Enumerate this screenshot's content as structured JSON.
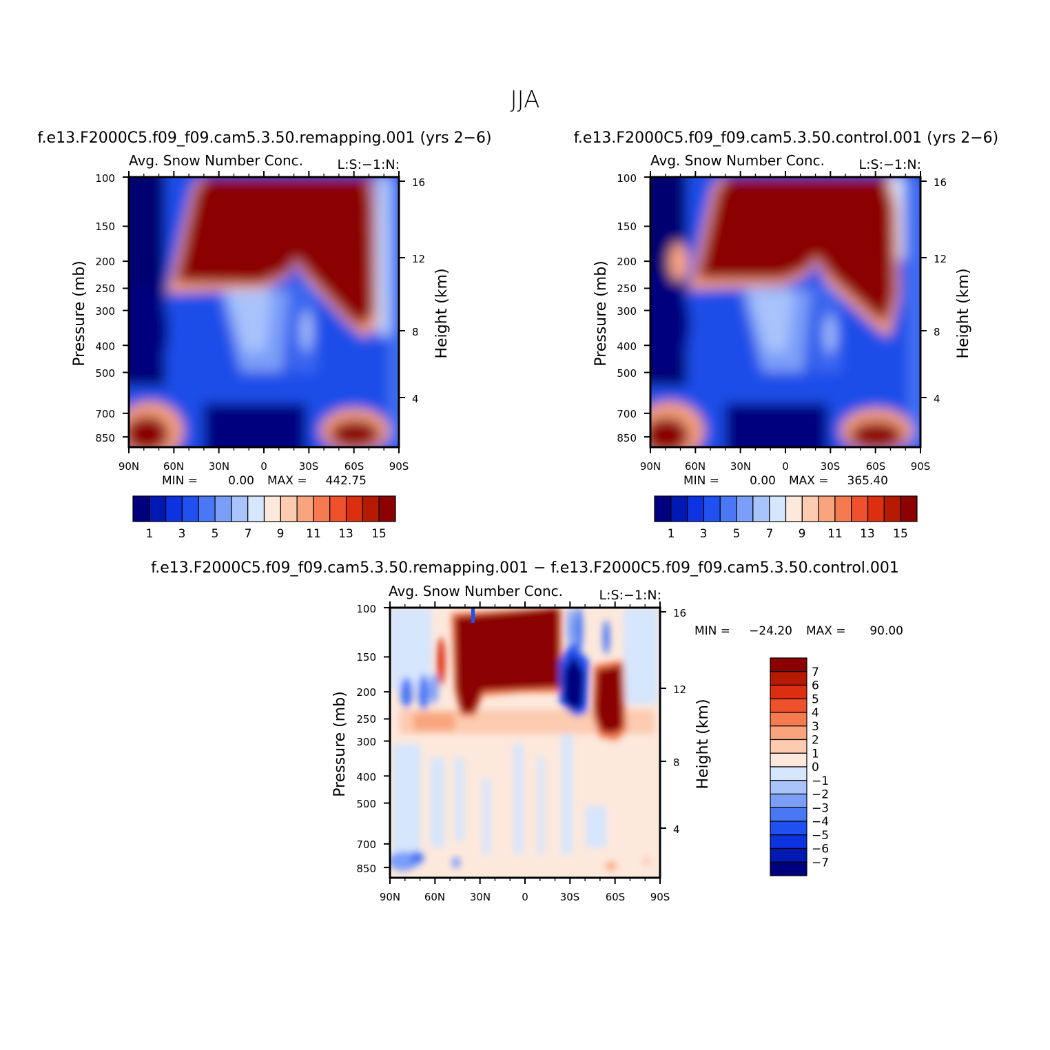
{
  "figure": {
    "title": "JJA",
    "palette_full": [
      "#00007f",
      "#0019b3",
      "#0d33e0",
      "#2050f0",
      "#4a78f5",
      "#7b9ef8",
      "#a9c3fb",
      "#d6e6fd",
      "#fde8dc",
      "#fccbb0",
      "#f9a47d",
      "#f57a4f",
      "#ee512c",
      "#dc2f10",
      "#b51a00",
      "#8b0000"
    ],
    "palette_diff": [
      "#00007f",
      "#0019b3",
      "#0d33e0",
      "#2050f0",
      "#4a78f5",
      "#7b9ef8",
      "#a9c3fb",
      "#d6e6fd",
      "#fde8dc",
      "#fccbb0",
      "#f9a47d",
      "#f57a4f",
      "#ee512c",
      "#dc2f10",
      "#b51a00",
      "#8b0000"
    ]
  },
  "chart_data": [
    {
      "type": "heatmap",
      "case_title": "f.e13.F2000C5.f09_f09.cam5.3.50.remapping.001 (yrs 2−6)",
      "left_title": "Avg. Snow Number Conc.",
      "right_title": "L:S:−1:N:",
      "ylabel": "Pressure (mb)",
      "y2label": "Height (km)",
      "x_ticks": [
        "90N",
        "60N",
        "30N",
        "0",
        "30S",
        "60S",
        "90S"
      ],
      "y_ticks": [
        "100",
        "150",
        "200",
        "250",
        "300",
        "400",
        "500",
        "700",
        "850"
      ],
      "y2_ticks": [
        "16",
        "12",
        "8",
        "4"
      ],
      "min_label": "MIN =",
      "min_value": "0.00",
      "max_label": "MAX =",
      "max_value": "442.75",
      "colorbar_labels": [
        "1",
        "3",
        "5",
        "7",
        "9",
        "11",
        "13",
        "15"
      ],
      "min": 0.0,
      "max": 442.75
    },
    {
      "type": "heatmap",
      "case_title": "f.e13.F2000C5.f09_f09.cam5.3.50.control.001 (yrs 2−6)",
      "left_title": "Avg. Snow Number Conc.",
      "right_title": "L:S:−1:N:",
      "ylabel": "Pressure (mb)",
      "y2label": "Height (km)",
      "x_ticks": [
        "90N",
        "60N",
        "30N",
        "0",
        "30S",
        "60S",
        "90S"
      ],
      "y_ticks": [
        "100",
        "150",
        "200",
        "250",
        "300",
        "400",
        "500",
        "700",
        "850"
      ],
      "y2_ticks": [
        "16",
        "12",
        "8",
        "4"
      ],
      "min_label": "MIN =",
      "min_value": "0.00",
      "max_label": "MAX =",
      "max_value": "365.40",
      "colorbar_labels": [
        "1",
        "3",
        "5",
        "7",
        "9",
        "11",
        "13",
        "15"
      ],
      "min": 0.0,
      "max": 365.4
    },
    {
      "type": "heatmap",
      "case_title": "f.e13.F2000C5.f09_f09.cam5.3.50.remapping.001 − f.e13.F2000C5.f09_f09.cam5.3.50.control.001",
      "left_title": "Avg. Snow Number Conc.",
      "right_title": "L:S:−1:N:",
      "ylabel": "Pressure (mb)",
      "y2label": "Height (km)",
      "x_ticks": [
        "90N",
        "60N",
        "30N",
        "0",
        "30S",
        "60S",
        "90S"
      ],
      "y_ticks": [
        "100",
        "150",
        "200",
        "250",
        "300",
        "400",
        "500",
        "700",
        "850"
      ],
      "y2_ticks": [
        "16",
        "12",
        "8",
        "4"
      ],
      "min_label": "MIN =",
      "min_value": "−24.20",
      "max_label": "MAX =",
      "max_value": "90.00",
      "colorbar_labels": [
        "7",
        "6",
        "5",
        "4",
        "3",
        "2",
        "1",
        "0",
        "−1",
        "−2",
        "−3",
        "−4",
        "−5",
        "−6",
        "−7"
      ],
      "min": -24.2,
      "max": 90.0
    }
  ]
}
